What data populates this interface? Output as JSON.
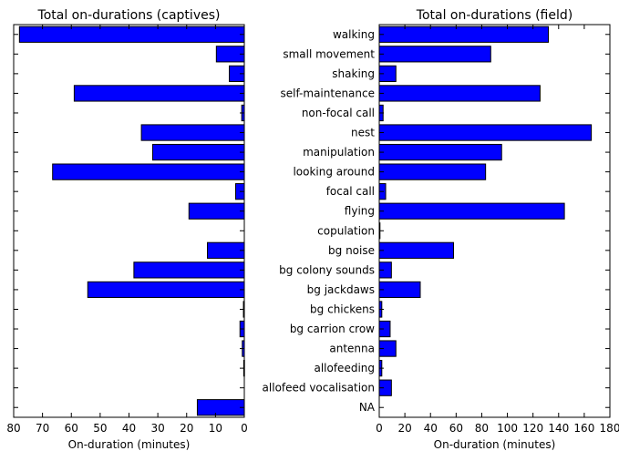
{
  "chart_data": [
    {
      "type": "bar",
      "orientation": "horizontal",
      "x_inverted": true,
      "title": "Total on-durations (captives)",
      "xlabel": "On-duration (minutes)",
      "ylabel": "",
      "xlim": [
        0,
        80
      ],
      "xticks": [
        80,
        70,
        60,
        50,
        40,
        30,
        20,
        10,
        0
      ],
      "categories": [
        "walking",
        "small movement",
        "shaking",
        "self-maintenance",
        "non-focal call",
        "nest",
        "manipulation",
        "looking around",
        "focal call",
        "flying",
        "copulation",
        "bg noise",
        "bg colony sounds",
        "bg jackdaws",
        "bg chickens",
        "bg carrion crow",
        "antenna",
        "allofeeding",
        "allofeed vocalisation",
        "NA"
      ],
      "show_category_labels": false,
      "values": [
        78,
        9.7,
        5.2,
        59,
        0.9,
        35.7,
        31.8,
        66.5,
        3,
        19.2,
        0,
        12.8,
        38.3,
        54.3,
        0.3,
        1.5,
        0.7,
        0.2,
        0,
        16.3
      ],
      "color": "#0000ff",
      "grid": false
    },
    {
      "type": "bar",
      "orientation": "horizontal",
      "title": "Total on-durations (field)",
      "xlabel": "On-duration (minutes)",
      "ylabel": "",
      "xlim": [
        0,
        180
      ],
      "xticks": [
        0,
        20,
        40,
        60,
        80,
        100,
        120,
        140,
        160,
        180
      ],
      "categories": [
        "walking",
        "small movement",
        "shaking",
        "self-maintenance",
        "non-focal call",
        "nest",
        "manipulation",
        "looking around",
        "focal call",
        "flying",
        "copulation",
        "bg noise",
        "bg colony sounds",
        "bg jackdaws",
        "bg chickens",
        "bg carrion crow",
        "antenna",
        "allofeeding",
        "allofeed vocalisation",
        "NA"
      ],
      "show_category_labels": true,
      "values": [
        132,
        87,
        13,
        125.5,
        3,
        165.5,
        95.5,
        83,
        5,
        144.5,
        0.5,
        58,
        9.5,
        32,
        2,
        8.5,
        13,
        2,
        9.5,
        0
      ],
      "color": "#0000ff",
      "grid": false
    }
  ]
}
